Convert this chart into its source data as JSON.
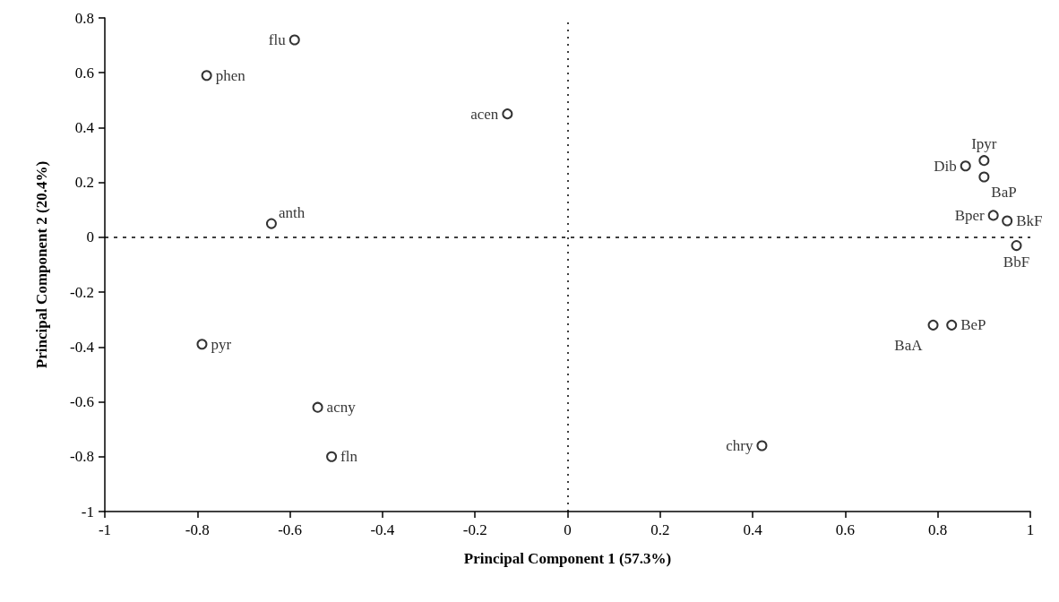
{
  "chart_data": {
    "type": "scatter",
    "xlabel": "Principal Component 1 (57.3%)",
    "ylabel": "Principal Component 2 (20.4%)",
    "x": [
      -0.59,
      -0.78,
      -0.13,
      -0.64,
      -0.79,
      -0.54,
      -0.51,
      0.86,
      0.9,
      0.9,
      0.92,
      0.95,
      0.97,
      0.79,
      0.83,
      0.42
    ],
    "series": [
      {
        "color": "#000000",
        "values": [
          0.72,
          0.59,
          0.45,
          0.05,
          -0.39,
          -0.62,
          -0.8,
          0.26,
          0.28,
          0.22,
          0.08,
          0.06,
          -0.03,
          -0.32,
          -0.32,
          -0.76
        ]
      }
    ],
    "annotations": [
      {
        "text": "flu",
        "x": -0.59,
        "y": 0.72
      },
      {
        "text": "phen",
        "x": -0.78,
        "y": 0.59
      },
      {
        "text": "acen",
        "x": -0.13,
        "y": 0.45
      },
      {
        "text": "anth",
        "x": -0.64,
        "y": 0.05
      },
      {
        "text": "pyr",
        "x": -0.79,
        "y": -0.39
      },
      {
        "text": "acny",
        "x": -0.54,
        "y": -0.62
      },
      {
        "text": "fln",
        "x": -0.51,
        "y": -0.8
      },
      {
        "text": "Dib",
        "x": 0.86,
        "y": 0.26
      },
      {
        "text": "Ipyr",
        "x": 0.9,
        "y": 0.28
      },
      {
        "text": "BaP",
        "x": 0.9,
        "y": 0.22
      },
      {
        "text": "Bper",
        "x": 0.92,
        "y": 0.08
      },
      {
        "text": "BkF",
        "x": 0.95,
        "y": 0.06
      },
      {
        "text": "BbF",
        "x": 0.97,
        "y": -0.03
      },
      {
        "text": "BaA",
        "x": 0.79,
        "y": -0.32
      },
      {
        "text": "BeP",
        "x": 0.83,
        "y": -0.32
      },
      {
        "text": "chry",
        "x": 0.42,
        "y": -0.76
      }
    ],
    "xlim": [
      -1,
      1
    ],
    "xticks": [
      -1,
      -0.8,
      -0.6,
      -0.4,
      -0.2,
      0,
      0.2,
      0.4,
      0.6,
      0.8,
      1
    ],
    "ylim": [
      -1,
      0.8
    ],
    "yticks": [
      -1,
      -0.8,
      -0.6,
      -0.4,
      -0.2,
      0,
      0.2,
      0.4,
      0.6,
      0.8
    ],
    "ref_lines": [
      {
        "axis": "x",
        "value": 0,
        "line_style": "dotted",
        "color": "#000000"
      },
      {
        "axis": "y",
        "value": 0,
        "line_style": "dashed",
        "color": "#000000"
      }
    ],
    "marker": "circle",
    "grid": false
  }
}
